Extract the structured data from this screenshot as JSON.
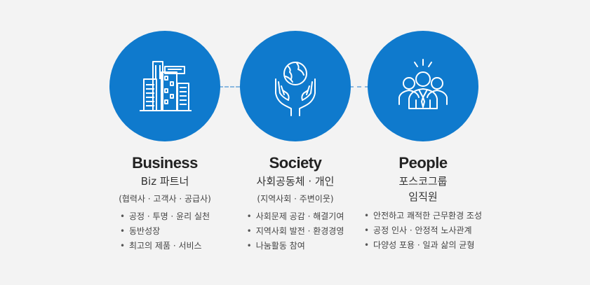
{
  "colors": {
    "circle": "#0f7acd",
    "connector": "#8ab8df",
    "icon_stroke": "#ffffff"
  },
  "columns": [
    {
      "icon": "buildings-icon",
      "title": "Business",
      "subtitle_lines": [
        "Biz 파트너"
      ],
      "paren": "(협력사 · 고객사 · 공급사)",
      "bullets": [
        "공정 · 투명 · 윤리 실천",
        "동반성장",
        "최고의 제품 · 서비스"
      ]
    },
    {
      "icon": "hands-globe-icon",
      "title": "Society",
      "subtitle_lines": [
        "사회공동체 · 개인"
      ],
      "paren": "(지역사회 · 주변이웃)",
      "bullets": [
        "사회문제 공감 · 해결기여",
        "지역사회 발전 · 환경경영",
        "나눔활동 참여"
      ]
    },
    {
      "icon": "people-group-icon",
      "title": "People",
      "subtitle_lines": [
        "포스코그룹",
        "임직원"
      ],
      "paren": "",
      "bullets": [
        "안전하고 쾌적한 근무환경 조성",
        "공정 인사 · 안정적 노사관계",
        "다양성 포용 · 일과 삶의 균형"
      ]
    }
  ]
}
